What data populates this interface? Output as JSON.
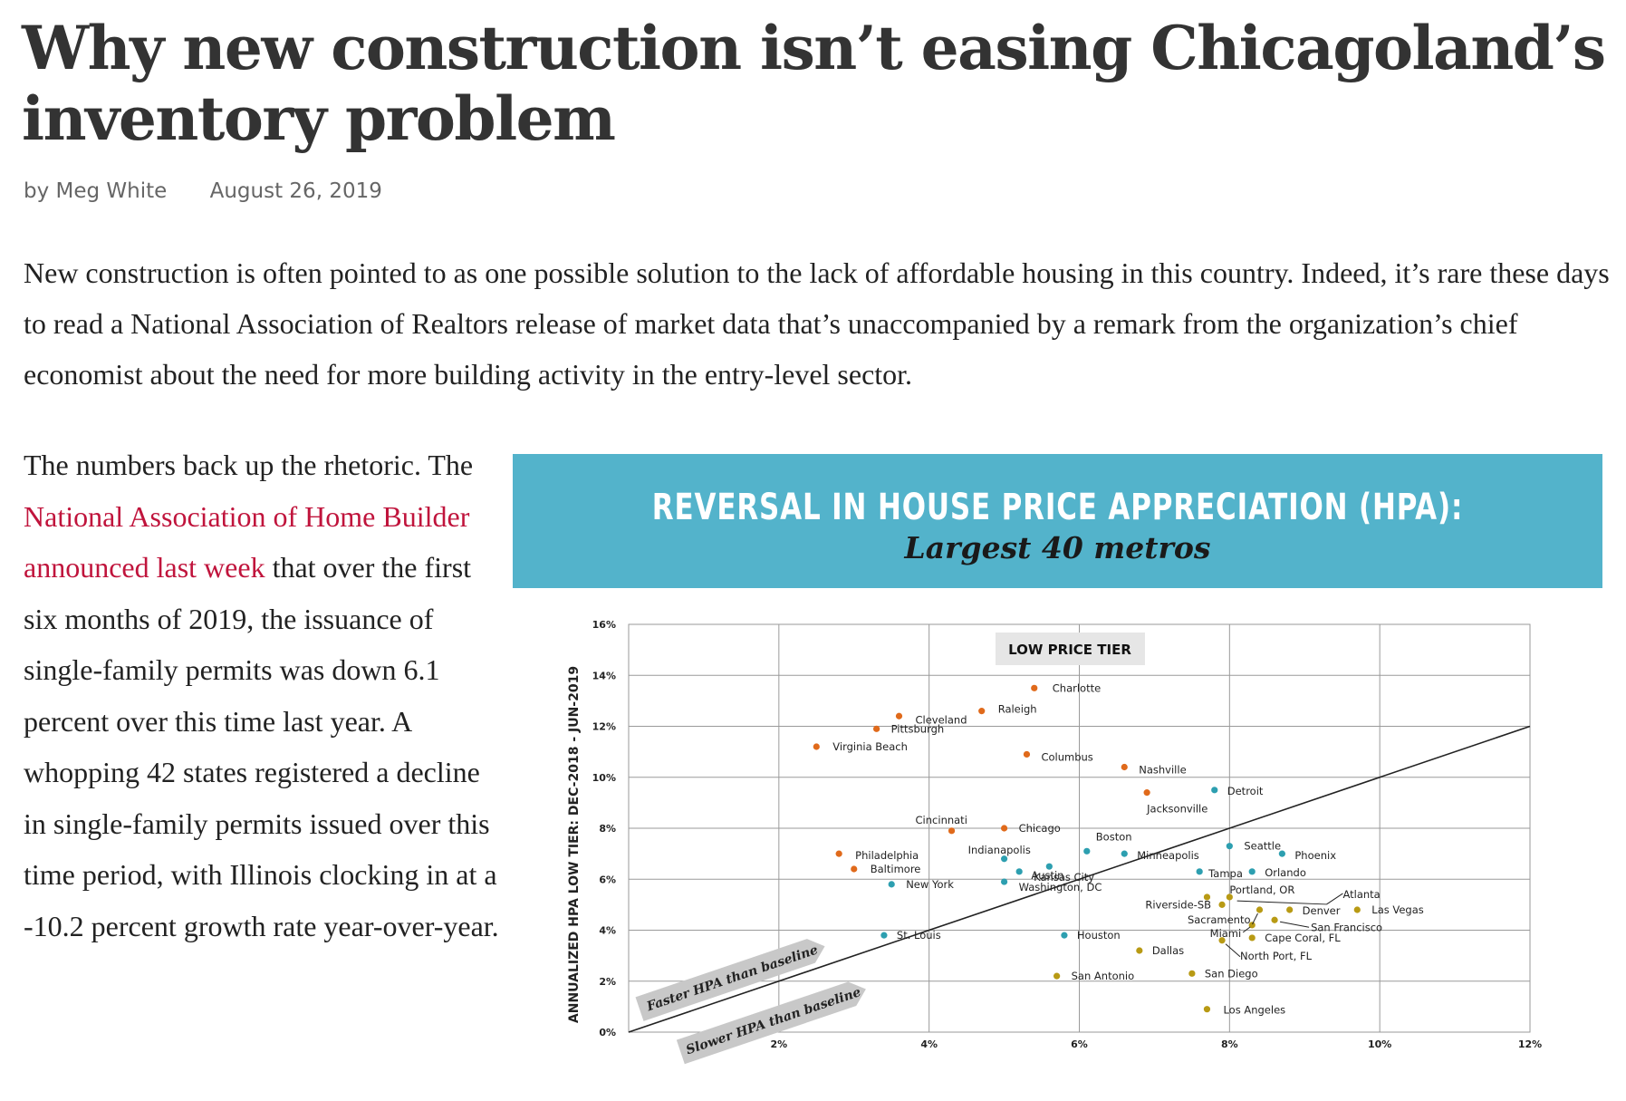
{
  "article": {
    "title": "Why new construction isn’t easing Chicagoland’s inventory problem",
    "author": "by Meg White",
    "date": "August 26, 2019",
    "intro": "New construction is often pointed to as one possible solution to the lack of affordable housing in this country. Indeed, it’s rare these days to read a National Association of Realtors release of market data that’s unaccompanied by a remark from the organization’s chief economist about the need for more building activity in the entry-level sector.",
    "para2_before": "The numbers back up the rhetoric. The ",
    "para2_link": "National Association of Home Builder announced last week",
    "para2_after": " that over the first six months of 2019, the issuance of single-family permits was down 6.1 percent over this time last year. A whopping 42 states registered a decline in single-family permits issued over this time period, with Illinois clocking in at a -10.2 percent growth rate year-over-year."
  },
  "figure": {
    "title": "REVERSAL IN HOUSE PRICE APPRECIATION (HPA):",
    "subtitle": "Largest 40 metros"
  },
  "chart_data": {
    "type": "scatter",
    "title": "REVERSAL IN HOUSE PRICE APPRECIATION (HPA):",
    "subtitle": "Largest 40 metros",
    "ylabel": "ANNUALIZED HPA LOW TIER: DEC-2018 - JUN-2019",
    "xlabel": "",
    "panel_label": "LOW PRICE TIER",
    "xlim": [
      0,
      12
    ],
    "ylim": [
      0,
      16
    ],
    "x_ticks": [
      "2%",
      "4%",
      "6%",
      "8%",
      "10%",
      "12%"
    ],
    "y_ticks": [
      "0%",
      "2%",
      "4%",
      "6%",
      "8%",
      "10%",
      "12%",
      "14%",
      "16%"
    ],
    "grid": true,
    "baseline_note_above": "Faster HPA than baseline",
    "baseline_note_below": "Slower HPA than baseline",
    "baseline": {
      "x": [
        0,
        12
      ],
      "y": [
        0,
        12
      ]
    },
    "colors": {
      "orange": "#e06a1b",
      "teal": "#2d9fb0",
      "gold": "#b89a14"
    },
    "series": [
      {
        "color": "orange",
        "points": [
          {
            "label": "Charlotte",
            "x": 5.4,
            "y": 13.5
          },
          {
            "label": "Raleigh",
            "x": 4.7,
            "y": 12.6
          },
          {
            "label": "Cleveland",
            "x": 3.6,
            "y": 12.4
          },
          {
            "label": "Pittsburgh",
            "x": 3.3,
            "y": 11.9
          },
          {
            "label": "Virginia Beach",
            "x": 2.5,
            "y": 11.2
          },
          {
            "label": "Columbus",
            "x": 5.3,
            "y": 10.9
          },
          {
            "label": "Nashville",
            "x": 6.6,
            "y": 10.4
          },
          {
            "label": "Jacksonville",
            "x": 6.9,
            "y": 9.4
          },
          {
            "label": "Cincinnati",
            "x": 4.3,
            "y": 7.9
          },
          {
            "label": "Chicago",
            "x": 5.0,
            "y": 8.0
          },
          {
            "label": "Philadelphia",
            "x": 2.8,
            "y": 7.0
          },
          {
            "label": "Baltimore",
            "x": 3.0,
            "y": 6.4
          }
        ]
      },
      {
        "color": "teal",
        "points": [
          {
            "label": "Detroit",
            "x": 7.8,
            "y": 9.5
          },
          {
            "label": "Boston",
            "x": 6.1,
            "y": 7.1
          },
          {
            "label": "Seattle",
            "x": 8.0,
            "y": 7.3
          },
          {
            "label": "Minneapolis",
            "x": 6.6,
            "y": 7.0
          },
          {
            "label": "Phoenix",
            "x": 8.7,
            "y": 7.0
          },
          {
            "label": "Indianapolis",
            "x": 5.0,
            "y": 6.8
          },
          {
            "label": "Austin",
            "x": 5.6,
            "y": 6.5
          },
          {
            "label": "Kansas City",
            "x": 5.2,
            "y": 6.3
          },
          {
            "label": "Washington, DC",
            "x": 5.0,
            "y": 5.9
          },
          {
            "label": "New York",
            "x": 3.5,
            "y": 5.8
          },
          {
            "label": "Tampa",
            "x": 7.6,
            "y": 6.3
          },
          {
            "label": "Orlando",
            "x": 8.3,
            "y": 6.3
          },
          {
            "label": "St. Louis",
            "x": 3.4,
            "y": 3.8
          },
          {
            "label": "Houston",
            "x": 5.8,
            "y": 3.8
          }
        ]
      },
      {
        "color": "gold",
        "points": [
          {
            "label": "Portland, OR",
            "x": 8.0,
            "y": 5.3
          },
          {
            "label": "Riverside-SB",
            "x": 7.9,
            "y": 5.0
          },
          {
            "label": "Atlanta",
            "x": 7.7,
            "y": 5.3
          },
          {
            "label": "Denver",
            "x": 8.8,
            "y": 4.8
          },
          {
            "label": "Las Vegas",
            "x": 9.7,
            "y": 4.8
          },
          {
            "label": "Sacramento",
            "x": 8.4,
            "y": 4.8
          },
          {
            "label": "San Francisco",
            "x": 8.6,
            "y": 4.4
          },
          {
            "label": "Miami",
            "x": 8.3,
            "y": 4.2
          },
          {
            "label": "Cape Coral, FL",
            "x": 8.3,
            "y": 3.7
          },
          {
            "label": "North Port, FL",
            "x": 7.9,
            "y": 3.6
          },
          {
            "label": "Dallas",
            "x": 6.8,
            "y": 3.2
          },
          {
            "label": "San Diego",
            "x": 7.5,
            "y": 2.3
          },
          {
            "label": "San Antonio",
            "x": 5.7,
            "y": 2.2
          },
          {
            "label": "Los Angeles",
            "x": 7.7,
            "y": 0.9
          }
        ]
      }
    ]
  }
}
